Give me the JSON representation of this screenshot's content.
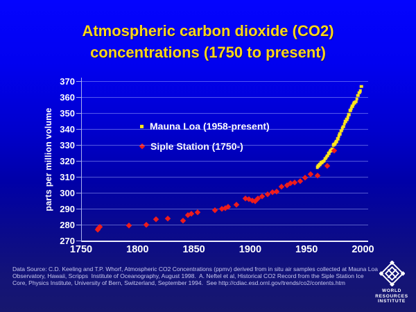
{
  "title": {
    "line1": "Atmospheric carbon dioxide (CO2)",
    "line2": "concentrations (1750 to present)"
  },
  "colors": {
    "background_top": "#0404FE",
    "background_bottom": "#17176E",
    "title_text": "#FFD714",
    "axis_text": "#FFFFFF",
    "gridline": "#A8B2FF",
    "mauna_loa_marker": "#FFE61A",
    "siple_marker": "#EE1C1C",
    "footer_text": "#C8C8F0"
  },
  "chart_data": {
    "type": "scatter",
    "title": "Atmospheric carbon dioxide (CO2) concentrations (1750 to present)",
    "xlabel": "",
    "ylabel": "parts per million volume",
    "xlim": [
      1750,
      2004
    ],
    "ylim": [
      270,
      372
    ],
    "xticks": [
      1750,
      1800,
      1850,
      1900,
      1950,
      2000
    ],
    "yticks": [
      270,
      280,
      290,
      300,
      310,
      320,
      330,
      340,
      350,
      360,
      370
    ],
    "grid": "horizontal",
    "legend_position": "inside-upper-left",
    "series": [
      {
        "id": "mauna-loa",
        "name": "Mauna Loa (1958-present)",
        "marker": "square",
        "color": "#FFE61A",
        "points": [
          [
            1959,
            316.0
          ],
          [
            1960,
            316.9
          ],
          [
            1961,
            317.6
          ],
          [
            1962,
            318.5
          ],
          [
            1963,
            319.0
          ],
          [
            1964,
            319.6
          ],
          [
            1965,
            320.0
          ],
          [
            1966,
            321.4
          ],
          [
            1967,
            322.2
          ],
          [
            1968,
            323.0
          ],
          [
            1969,
            324.6
          ],
          [
            1970,
            325.7
          ],
          [
            1971,
            326.3
          ],
          [
            1972,
            327.5
          ],
          [
            1973,
            329.7
          ],
          [
            1974,
            330.2
          ],
          [
            1975,
            331.1
          ],
          [
            1976,
            332.0
          ],
          [
            1977,
            333.8
          ],
          [
            1978,
            335.4
          ],
          [
            1979,
            336.8
          ],
          [
            1980,
            338.7
          ],
          [
            1981,
            340.1
          ],
          [
            1982,
            341.4
          ],
          [
            1983,
            343.0
          ],
          [
            1984,
            344.6
          ],
          [
            1985,
            345.9
          ],
          [
            1986,
            347.2
          ],
          [
            1987,
            349.0
          ],
          [
            1988,
            351.5
          ],
          [
            1989,
            352.9
          ],
          [
            1990,
            354.2
          ],
          [
            1991,
            355.5
          ],
          [
            1992,
            356.3
          ],
          [
            1993,
            357.0
          ],
          [
            1994,
            358.6
          ],
          [
            1995,
            360.8
          ],
          [
            1996,
            362.6
          ],
          [
            1997,
            363.7
          ],
          [
            1998,
            366.5
          ]
        ]
      },
      {
        "id": "siple",
        "name": "Siple Station (1750-)",
        "marker": "diamond",
        "color": "#EE1C1C",
        "points": [
          [
            1764,
            276.8
          ],
          [
            1765,
            277.6
          ],
          [
            1766,
            278.6
          ],
          [
            1792,
            279.7
          ],
          [
            1807,
            279.9
          ],
          [
            1816,
            283.3
          ],
          [
            1826,
            283.8
          ],
          [
            1840,
            282.8
          ],
          [
            1844,
            286.1
          ],
          [
            1847,
            286.9
          ],
          [
            1853,
            287.6
          ],
          [
            1868,
            289.0
          ],
          [
            1874,
            289.8
          ],
          [
            1877,
            290.6
          ],
          [
            1880,
            291.2
          ],
          [
            1887,
            292.4
          ],
          [
            1895,
            296.6
          ],
          [
            1898,
            295.9
          ],
          [
            1901,
            295.1
          ],
          [
            1904,
            294.8
          ],
          [
            1906,
            296.3
          ],
          [
            1910,
            297.9
          ],
          [
            1915,
            299.2
          ],
          [
            1919,
            300.2
          ],
          [
            1923,
            301.0
          ],
          [
            1927,
            303.8
          ],
          [
            1932,
            304.9
          ],
          [
            1935,
            305.9
          ],
          [
            1939,
            306.6
          ],
          [
            1944,
            307.5
          ],
          [
            1948,
            309.5
          ],
          [
            1953,
            311.5
          ],
          [
            1959,
            310.9
          ],
          [
            1968,
            317.0
          ],
          [
            1974,
            326.5
          ]
        ]
      }
    ]
  },
  "footer": {
    "line1": "Data Source: C.D. Keeling and T.P. Whorf, Atmospheric CO2 Concentrations (ppmv) derived from in situ air samples collected at Mauna Loa",
    "line2": "Observatory, Hawaii, Scripps  Institute of Oceanography, August 1998.  A. Neftel et al, Historical CO2 Record from the Siple Station Ice",
    "line3": "Core, Physics Institute, University of Bern, Switzerland, September 1994.  See http://cdiac.esd.ornl.gov/trends/co2/contents.htm"
  },
  "logo": {
    "lines": [
      "WORLD",
      "RESOURCES",
      "INSTITUTE"
    ]
  }
}
